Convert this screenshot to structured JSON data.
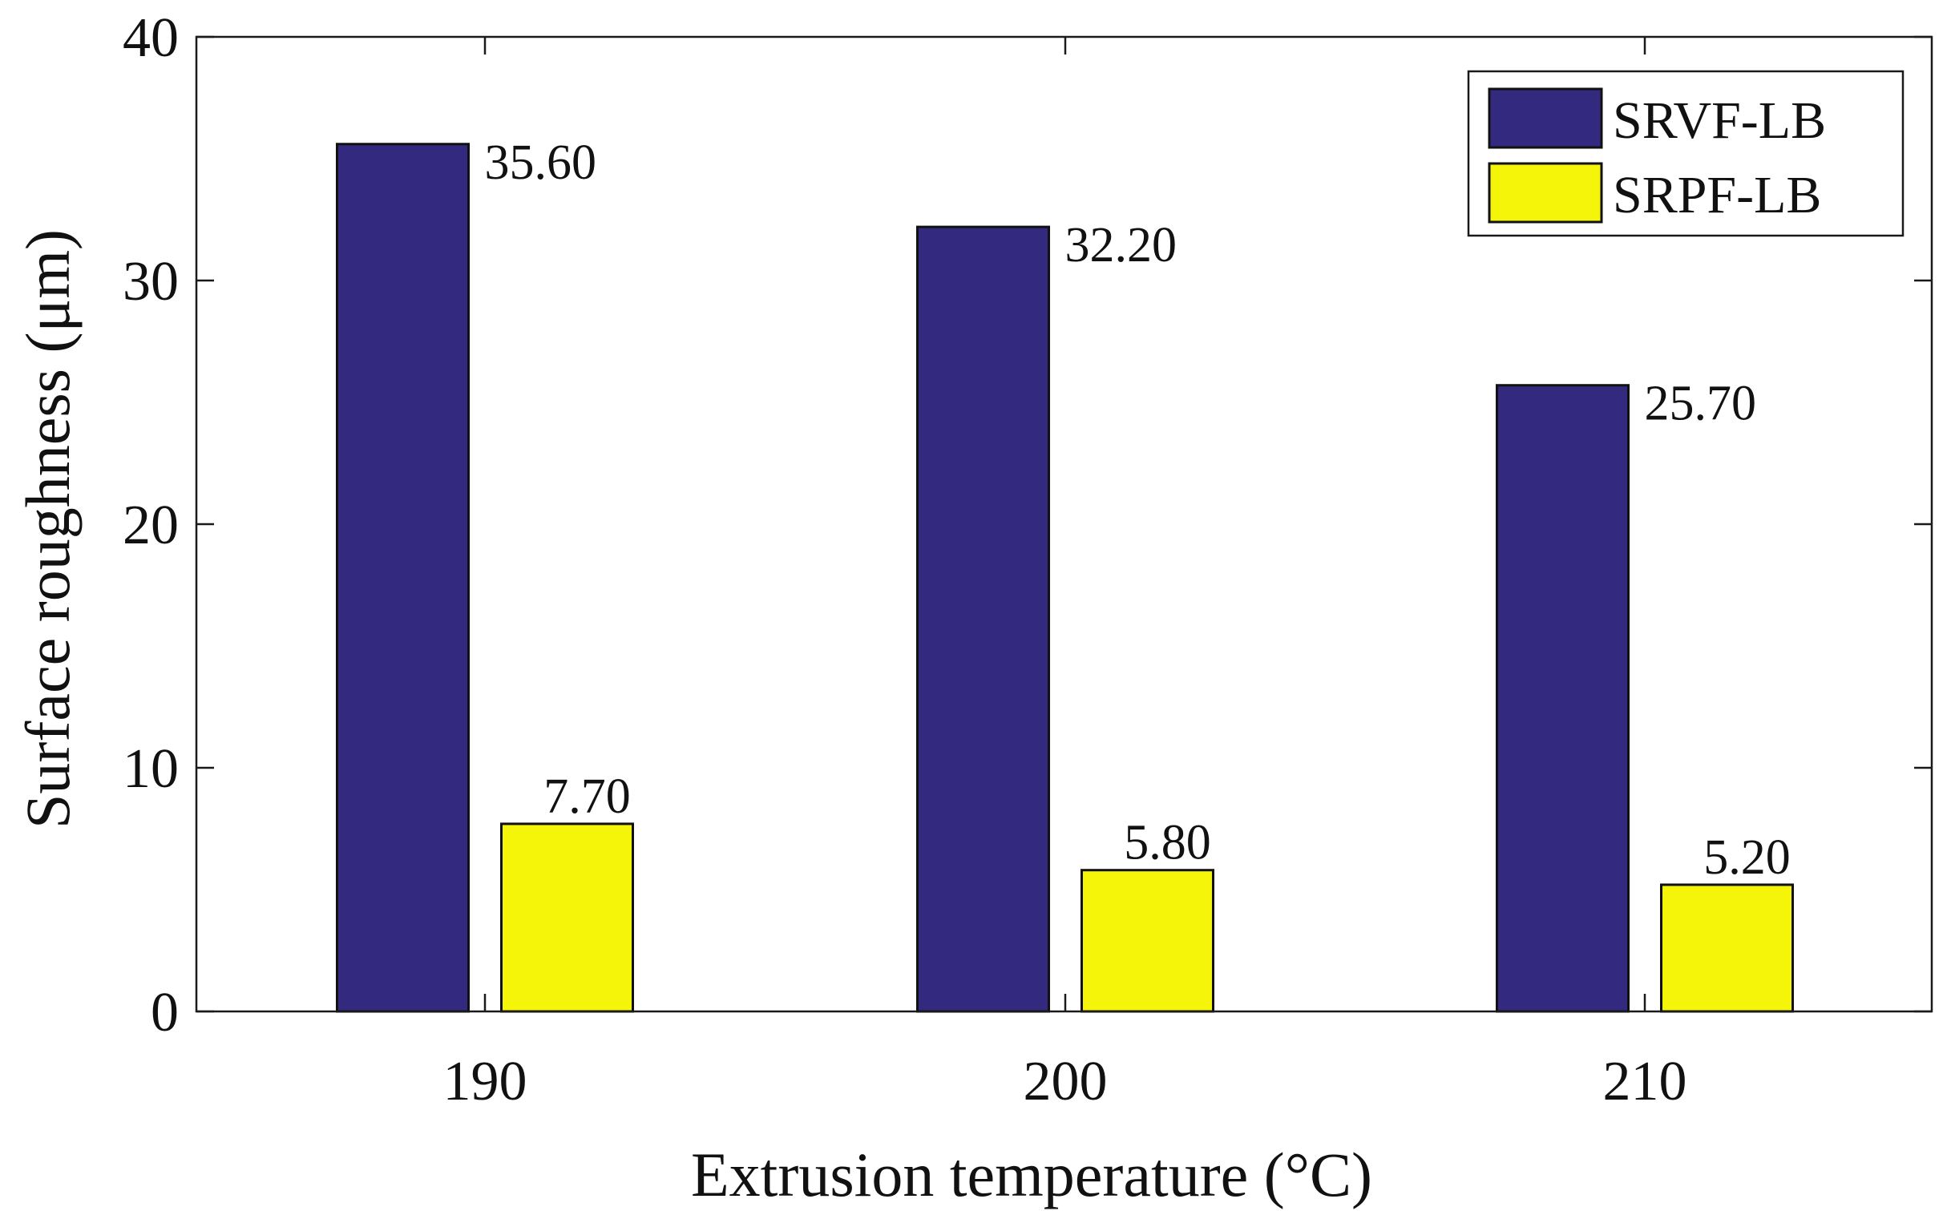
{
  "chart_data": {
    "type": "bar",
    "title": "",
    "xlabel": "Extrusion temperature (°C)",
    "ylabel": "Surface roughness (μm)",
    "categories": [
      "190",
      "200",
      "210"
    ],
    "ylim": [
      0,
      40
    ],
    "yticks": [
      0,
      10,
      20,
      30,
      40
    ],
    "legend_position": "top-right",
    "grid": false,
    "series": [
      {
        "name": "SRVF-LB",
        "color": "#332a80",
        "values": [
          35.6,
          32.2,
          25.7
        ],
        "labels": [
          "35.60",
          "32.20",
          "25.70"
        ]
      },
      {
        "name": "SRPF-LB",
        "color": "#f5f50a",
        "values": [
          7.7,
          5.8,
          5.2
        ],
        "labels": [
          "7.70",
          "5.80",
          "5.20"
        ]
      }
    ]
  }
}
